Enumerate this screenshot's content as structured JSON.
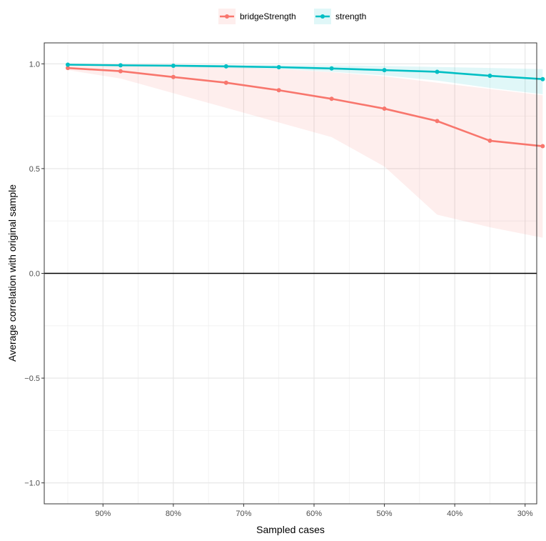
{
  "chart_data": {
    "type": "line",
    "xlabel": "Sampled cases",
    "ylabel": "Average correlation with original sample",
    "x_ticks": [
      {
        "value": 0.9,
        "label": "90%"
      },
      {
        "value": 0.8,
        "label": "80%"
      },
      {
        "value": 0.7,
        "label": "70%"
      },
      {
        "value": 0.6,
        "label": "60%"
      },
      {
        "value": 0.5,
        "label": "50%"
      },
      {
        "value": 0.4,
        "label": "40%"
      },
      {
        "value": 0.3,
        "label": "30%"
      }
    ],
    "y_ticks": [
      {
        "value": 1.0,
        "label": "1.0"
      },
      {
        "value": 0.5,
        "label": "0.5"
      },
      {
        "value": 0.0,
        "label": "0.0"
      },
      {
        "value": -0.5,
        "label": "-0.5"
      },
      {
        "value": -1.0,
        "label": "-1.0"
      }
    ],
    "xlim": [
      0.95,
      0.25
    ],
    "ylim": [
      -1.1,
      1.1
    ],
    "reference_line": 0,
    "legend_position": "top",
    "grid": true,
    "x": [
      0.95,
      0.875,
      0.8,
      0.725,
      0.65,
      0.575,
      0.5,
      0.425,
      0.35,
      0.275
    ],
    "series": [
      {
        "name": "bridgeStrength",
        "color": "#F8766D",
        "values": [
          0.98,
          0.965,
          0.937,
          0.91,
          0.874,
          0.833,
          0.786,
          0.727,
          0.633,
          0.607
        ],
        "lower": [
          0.97,
          0.93,
          0.86,
          0.79,
          0.72,
          0.65,
          0.51,
          0.28,
          0.22,
          0.17
        ],
        "upper": [
          0.995,
          0.99,
          0.99,
          0.985,
          0.975,
          0.96,
          0.94,
          0.91,
          0.88,
          0.85
        ]
      },
      {
        "name": "strength",
        "color": "#00BFC4",
        "values": [
          0.996,
          0.993,
          0.991,
          0.988,
          0.984,
          0.978,
          0.97,
          0.962,
          0.943,
          0.927
        ],
        "lower": [
          0.994,
          0.99,
          0.986,
          0.98,
          0.975,
          0.962,
          0.945,
          0.92,
          0.885,
          0.855
        ],
        "upper": [
          0.998,
          0.997,
          0.996,
          0.995,
          0.994,
          0.993,
          0.99,
          0.985,
          0.98,
          0.975
        ]
      }
    ]
  }
}
